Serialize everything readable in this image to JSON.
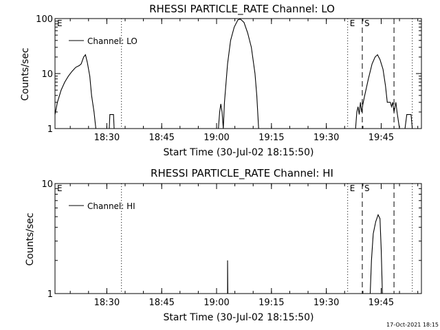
{
  "footer": {
    "timestamp": "17-Oct-2021 18:15"
  },
  "chart_data": [
    {
      "type": "line",
      "title": "RHESSI PARTICLE_RATE Channel: LO",
      "xlabel": "Start Time (30-Jul-02 18:15:50)",
      "ylabel": "Counts/sec",
      "yscale": "log",
      "ylim": [
        1,
        100
      ],
      "xlim": [
        "18:15:50",
        "19:56:00"
      ],
      "x_ticks": [
        "18:30",
        "18:45",
        "19:00",
        "19:15",
        "19:30",
        "19:45"
      ],
      "y_ticks": [
        "1",
        "10",
        "100"
      ],
      "legend": {
        "position": "top-left",
        "label": "Channel: LO"
      },
      "markers": [
        {
          "label": "E",
          "time": "18:15:50",
          "style": "dotted"
        },
        {
          "label": "",
          "time": "18:34:00",
          "style": "dotted"
        },
        {
          "label": "E",
          "time": "19:35:50",
          "style": "dotted"
        },
        {
          "label": "S",
          "time": "19:39:50",
          "style": "dashed"
        },
        {
          "label": "",
          "time": "19:48:30",
          "style": "dashed"
        },
        {
          "label": "",
          "time": "19:53:30",
          "style": "dotted"
        }
      ],
      "series": [
        {
          "name": "Channel: LO",
          "segments": [
            [
              [
                "18:15:50",
                1.8
              ],
              [
                "18:16:30",
                3.0
              ],
              [
                "18:17:30",
                5.0
              ],
              [
                "18:18:30",
                7.0
              ],
              [
                "18:19:30",
                9.0
              ],
              [
                "18:20:30",
                11.0
              ],
              [
                "18:21:30",
                13.0
              ],
              [
                "18:22:30",
                14.0
              ],
              [
                "18:23:00",
                15.0
              ],
              [
                "18:23:40",
                20.0
              ],
              [
                "18:24:10",
                22.0
              ],
              [
                "18:24:40",
                16.0
              ],
              [
                "18:25:20",
                9.0
              ],
              [
                "18:25:50",
                4.0
              ],
              [
                "18:26:30",
                2.0
              ],
              [
                "18:27:00",
                1.0
              ]
            ],
            [
              [
                "18:27:00",
                1.0
              ],
              [
                "18:30:40",
                1.0
              ],
              [
                "18:30:50",
                1.8
              ],
              [
                "18:31:50",
                1.8
              ],
              [
                "18:32:00",
                1.0
              ]
            ],
            [
              [
                "18:32:00",
                1.0
              ],
              [
                "19:00:30",
                1.0
              ],
              [
                "19:00:50",
                2.0
              ],
              [
                "19:01:10",
                2.8
              ],
              [
                "19:01:30",
                2.0
              ],
              [
                "19:01:50",
                1.0
              ],
              [
                "19:02:10",
                3.0
              ],
              [
                "19:03:00",
                15.0
              ],
              [
                "19:03:50",
                40.0
              ],
              [
                "19:04:50",
                70.0
              ],
              [
                "19:05:50",
                95.0
              ],
              [
                "19:06:30",
                98.0
              ],
              [
                "19:07:30",
                85.0
              ],
              [
                "19:08:30",
                55.0
              ],
              [
                "19:09:30",
                30.0
              ],
              [
                "19:10:30",
                10.0
              ],
              [
                "19:11:00",
                4.0
              ],
              [
                "19:11:30",
                1.0
              ]
            ],
            [
              [
                "19:11:30",
                1.0
              ],
              [
                "19:38:00",
                1.0
              ],
              [
                "19:38:20",
                2.0
              ],
              [
                "19:38:40",
                2.5
              ],
              [
                "19:39:00",
                1.8
              ],
              [
                "19:39:20",
                3.0
              ],
              [
                "19:39:40",
                2.0
              ],
              [
                "19:40:00",
                2.8
              ],
              [
                "19:40:30",
                4.0
              ],
              [
                "19:41:30",
                8.0
              ],
              [
                "19:42:30",
                15.0
              ],
              [
                "19:43:20",
                20.0
              ],
              [
                "19:44:00",
                22.0
              ],
              [
                "19:44:40",
                18.0
              ],
              [
                "19:45:30",
                12.0
              ],
              [
                "19:46:10",
                6.0
              ],
              [
                "19:46:40",
                3.0
              ],
              [
                "19:47:30",
                3.0
              ],
              [
                "19:47:50",
                2.5
              ],
              [
                "19:48:10",
                3.0
              ],
              [
                "19:48:30",
                2.0
              ],
              [
                "19:49:00",
                3.0
              ],
              [
                "19:49:20",
                2.0
              ],
              [
                "19:50:00",
                1.0
              ]
            ],
            [
              [
                "19:50:00",
                1.0
              ],
              [
                "19:51:30",
                1.0
              ],
              [
                "19:52:00",
                1.8
              ],
              [
                "19:53:10",
                1.8
              ],
              [
                "19:53:30",
                1.0
              ]
            ]
          ]
        }
      ]
    },
    {
      "type": "line",
      "title": "RHESSI PARTICLE_RATE Channel: HI",
      "xlabel": "Start Time (30-Jul-02 18:15:50)",
      "ylabel": "Counts/sec",
      "yscale": "log",
      "ylim": [
        1,
        10
      ],
      "xlim": [
        "18:15:50",
        "19:56:00"
      ],
      "x_ticks": [
        "18:30",
        "18:45",
        "19:00",
        "19:15",
        "19:30",
        "19:45"
      ],
      "y_ticks": [
        "1",
        "10"
      ],
      "legend": {
        "position": "top-left",
        "label": "Channel: HI"
      },
      "markers": [
        {
          "label": "E",
          "time": "18:15:50",
          "style": "dotted"
        },
        {
          "label": "",
          "time": "18:34:00",
          "style": "dotted"
        },
        {
          "label": "E",
          "time": "19:35:50",
          "style": "dotted"
        },
        {
          "label": "S",
          "time": "19:39:50",
          "style": "dashed"
        },
        {
          "label": "",
          "time": "19:48:30",
          "style": "dashed"
        },
        {
          "label": "",
          "time": "19:53:30",
          "style": "dotted"
        }
      ],
      "series": [
        {
          "name": "Channel: HI",
          "segments": [
            [
              [
                "19:03:00",
                1.0
              ],
              [
                "19:03:00",
                2.0
              ],
              [
                "19:03:05",
                1.0
              ]
            ],
            [
              [
                "19:42:00",
                1.0
              ],
              [
                "19:42:20",
                2.0
              ],
              [
                "19:42:50",
                3.5
              ],
              [
                "19:43:30",
                4.5
              ],
              [
                "19:44:10",
                5.2
              ],
              [
                "19:44:40",
                4.8
              ],
              [
                "19:45:00",
                2.5
              ],
              [
                "19:45:20",
                1.0
              ]
            ]
          ]
        }
      ]
    }
  ]
}
